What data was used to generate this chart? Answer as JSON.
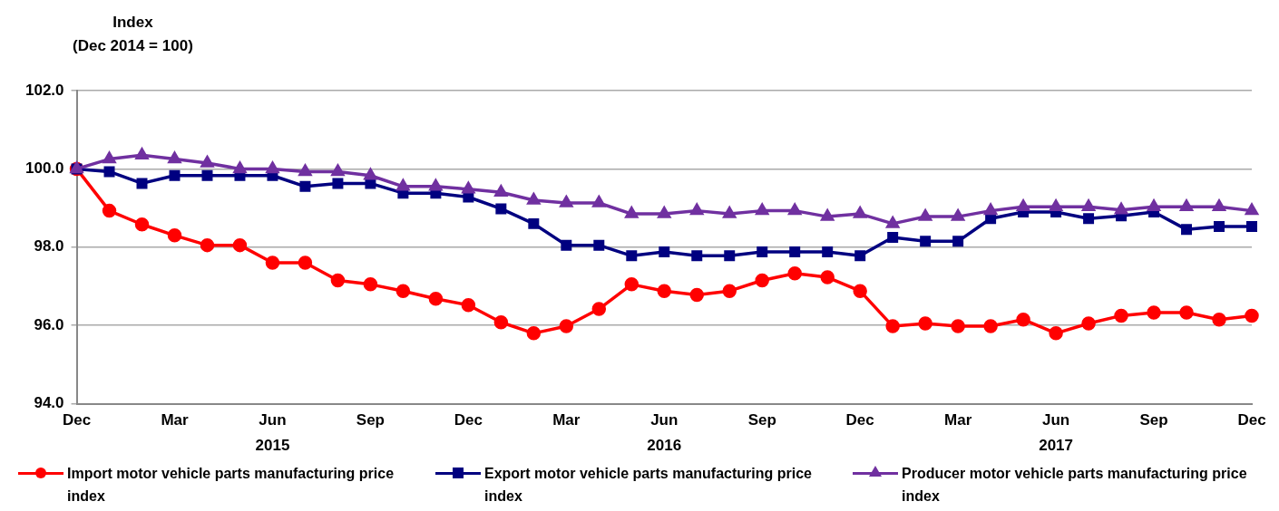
{
  "chart_data": {
    "type": "line",
    "ylabel": "Index\n(Dec 2014 = 100)",
    "categories": [
      "Dec",
      null,
      null,
      "Mar",
      null,
      null,
      "Jun",
      null,
      null,
      "Sep",
      null,
      null,
      "Dec",
      null,
      null,
      "Mar",
      null,
      null,
      "Jun",
      null,
      null,
      "Sep",
      null,
      null,
      "Dec",
      null,
      null,
      "Mar",
      null,
      null,
      "Jun",
      null,
      null,
      "Sep",
      null,
      null,
      "Dec"
    ],
    "annotations": [
      "2015",
      "2016",
      "2017"
    ],
    "ylim": [
      94,
      102
    ],
    "yticks": [
      {
        "value": 94,
        "label": "94.0"
      },
      {
        "value": 96,
        "label": "96.0"
      },
      {
        "value": 98,
        "label": "98.0"
      },
      {
        "value": 100,
        "label": "100.0"
      },
      {
        "value": 102,
        "label": "102.0"
      }
    ],
    "grid": "y",
    "legend": "bottom",
    "line_style": "solid",
    "series": [
      {
        "name": "Import motor vehicle parts manufacturing price index",
        "color": "#ff0000",
        "marker": "circle",
        "values": [
          100,
          98.93,
          98.58,
          98.3,
          98.05,
          98.05,
          97.6,
          97.6,
          97.15,
          97.05,
          96.88,
          96.68,
          96.52,
          96.08,
          95.8,
          95.98,
          96.42,
          97.05,
          96.88,
          96.78,
          96.88,
          97.15,
          97.33,
          97.23,
          96.88,
          95.98,
          96.05,
          95.98,
          95.98,
          96.15,
          95.8,
          96.05,
          96.25,
          96.33,
          96.33,
          96.15,
          96.25
        ]
      },
      {
        "name": "Export motor vehicle parts manufacturing price index",
        "color": "#000080",
        "marker": "square",
        "values": [
          100,
          99.93,
          99.63,
          99.83,
          99.83,
          99.83,
          99.83,
          99.55,
          99.63,
          99.63,
          99.38,
          99.38,
          99.28,
          98.98,
          98.6,
          98.05,
          98.05,
          97.78,
          97.88,
          97.78,
          97.78,
          97.88,
          97.88,
          97.88,
          97.78,
          98.25,
          98.15,
          98.15,
          98.73,
          98.9,
          98.9,
          98.73,
          98.8,
          98.9,
          98.45,
          98.53,
          98.53
        ]
      },
      {
        "name": "Producer motor vehicle parts manufacturing price index",
        "color": "#7030a0",
        "marker": "triangle",
        "values": [
          100,
          100.25,
          100.35,
          100.25,
          100.15,
          100,
          100,
          99.93,
          99.93,
          99.83,
          99.55,
          99.55,
          99.48,
          99.4,
          99.2,
          99.13,
          99.13,
          98.85,
          98.85,
          98.93,
          98.85,
          98.93,
          98.93,
          98.78,
          98.85,
          98.6,
          98.78,
          98.78,
          98.93,
          99.03,
          99.03,
          99.03,
          98.95,
          99.03,
          99.03,
          99.03,
          98.93
        ]
      }
    ]
  }
}
